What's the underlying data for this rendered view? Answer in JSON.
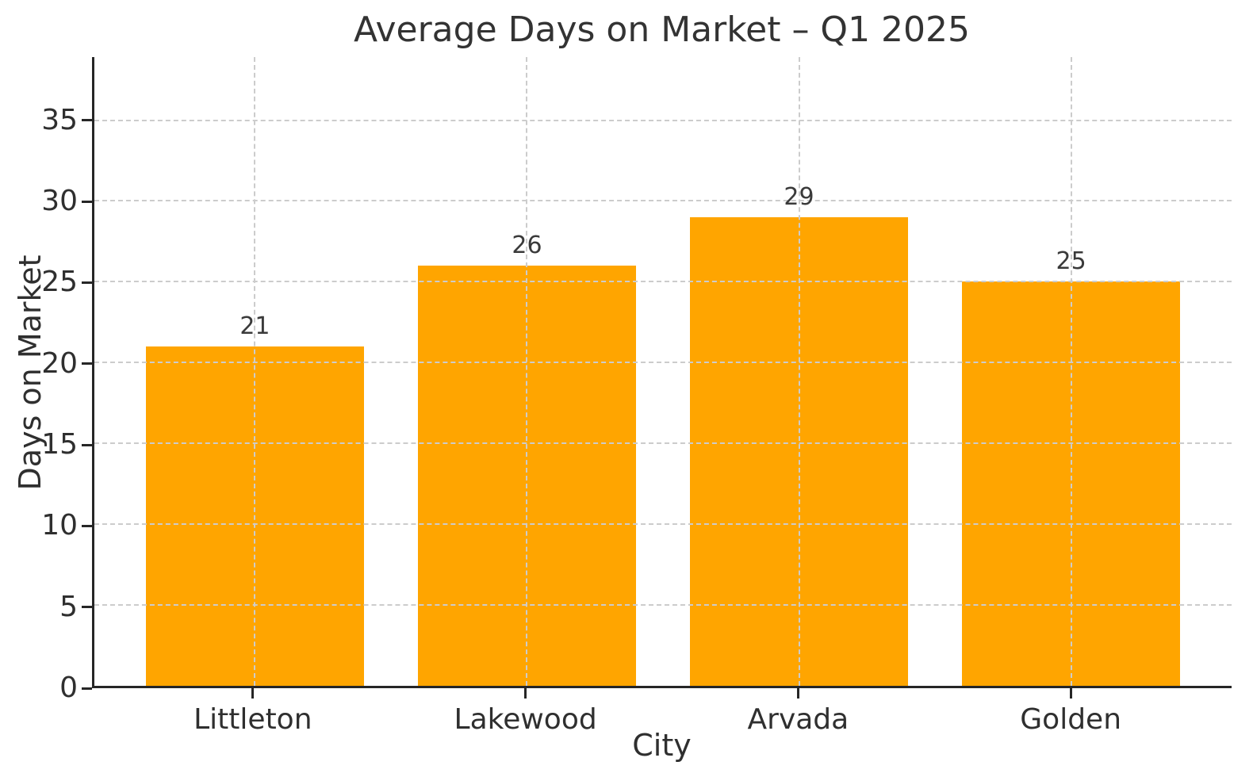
{
  "chart_data": {
    "type": "bar",
    "title": "Average Days on Market – Q1 2025",
    "xlabel": "City",
    "ylabel": "Days on Market",
    "categories": [
      "Littleton",
      "Lakewood",
      "Arvada",
      "Golden"
    ],
    "values": [
      21,
      26,
      29,
      25
    ],
    "bar_labels": [
      "21",
      "26",
      "29",
      "25"
    ],
    "bar_color": "#FFA500",
    "yticks": [
      0,
      5,
      10,
      15,
      20,
      25,
      30,
      35
    ],
    "ylim": [
      0,
      38.9
    ],
    "xlim": [
      -0.59,
      3.59
    ],
    "bar_width": 0.8,
    "grid": "dashed, drawn above bars, horizontal and vertical at category centers",
    "grid_color": "#cccccc",
    "text_color": "#2f2f2f",
    "legend": "none"
  }
}
